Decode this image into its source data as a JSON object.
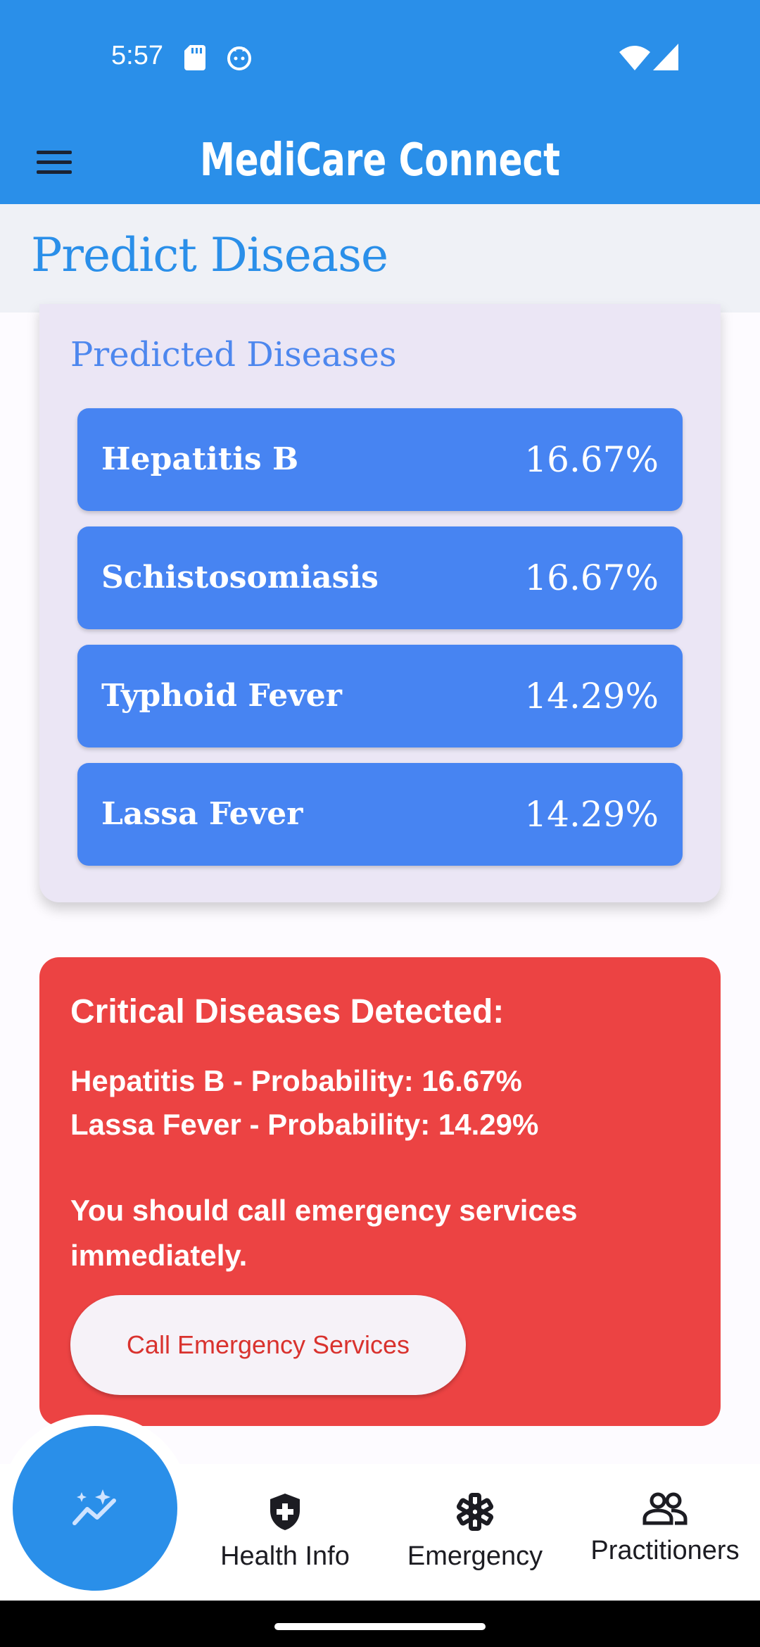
{
  "status_bar": {
    "time": "5:57"
  },
  "app_bar": {
    "title": "MediCare Connect",
    "menu_icon": "hamburger-menu-icon"
  },
  "page": {
    "title": "Predict Disease"
  },
  "predicted": {
    "heading": "Predicted Diseases",
    "items": [
      {
        "name": "Hepatitis B",
        "percent": "16.67%"
      },
      {
        "name": "Schistosomiasis",
        "percent": "16.67%"
      },
      {
        "name": "Typhoid Fever",
        "percent": "14.29%"
      },
      {
        "name": "Lassa Fever",
        "percent": "14.29%"
      }
    ]
  },
  "critical": {
    "heading": "Critical Diseases Detected:",
    "lines": [
      "Hepatitis B - Probability: 16.67%",
      "Lassa Fever - Probability: 14.29%"
    ],
    "message": "You should call emergency services immediately.",
    "button_label": "Call Emergency Services"
  },
  "bottom_nav": {
    "fab_icon": "predict-trend-icon",
    "items": [
      {
        "label": "Health Info",
        "icon": "shield-plus-icon"
      },
      {
        "label": "Emergency",
        "icon": "medical-star-icon"
      },
      {
        "label": "Practitioners",
        "icon": "people-icon"
      }
    ]
  },
  "colors": {
    "primary": "#2a8fe9",
    "disease_item": "#4784f2",
    "critical": "#ec4343",
    "card_bg": "#ebe6f5"
  }
}
